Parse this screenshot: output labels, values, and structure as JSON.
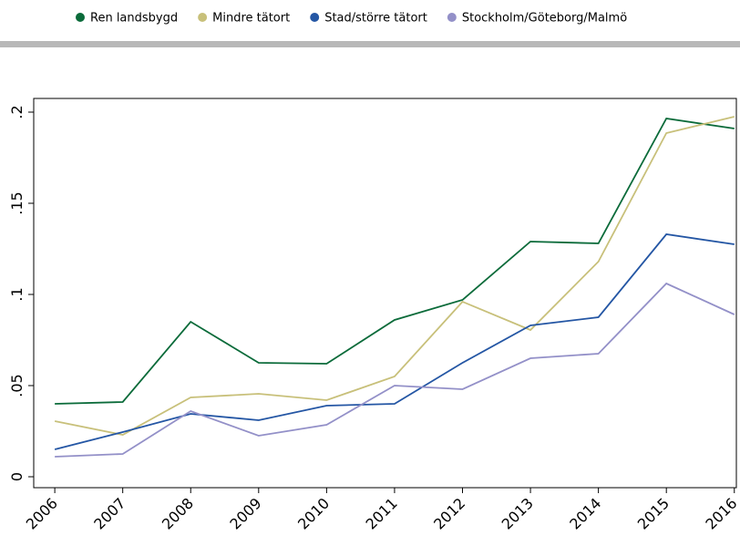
{
  "chart_data": {
    "type": "line",
    "x": [
      2006,
      2007,
      2008,
      2009,
      2010,
      2011,
      2012,
      2013,
      2014,
      2015,
      2016
    ],
    "xlim": [
      2005.69,
      2016.03
    ],
    "xticks": [
      2006,
      2007,
      2008,
      2009,
      2010,
      2011,
      2012,
      2013,
      2014,
      2015,
      2016
    ],
    "ylim": [
      -0.006,
      0.2075
    ],
    "yticks": [
      0,
      {
        "value": 0.05,
        "label": ".05"
      },
      {
        "value": 0.1,
        "label": ".1"
      },
      {
        "value": 0.15,
        "label": ".15"
      },
      {
        "value": 0.2,
        "label": ".2"
      }
    ],
    "series": [
      {
        "name": "Ren landsbygd",
        "color": "#0b6b3a",
        "values": [
          0.04,
          0.041,
          0.085,
          0.0625,
          0.062,
          0.086,
          0.097,
          0.129,
          0.128,
          0.1965,
          0.191
        ]
      },
      {
        "name": "Mindre tätort",
        "color": "#c8c07a",
        "values": [
          0.0305,
          0.023,
          0.0435,
          0.0455,
          0.042,
          0.055,
          0.096,
          0.0805,
          0.118,
          0.1885,
          0.1975
        ]
      },
      {
        "name": "Stad/större tätort",
        "color": "#2456a4",
        "values": [
          0.015,
          0.0245,
          0.0345,
          0.031,
          0.039,
          0.04,
          0.0625,
          0.083,
          0.0875,
          0.133,
          0.1275
        ]
      },
      {
        "name": "Stockholm/Göteborg/Malmö",
        "color": "#9390c8",
        "values": [
          0.011,
          0.0125,
          0.036,
          0.0225,
          0.0285,
          0.05,
          0.048,
          0.065,
          0.0675,
          0.106,
          0.089
        ]
      }
    ]
  }
}
